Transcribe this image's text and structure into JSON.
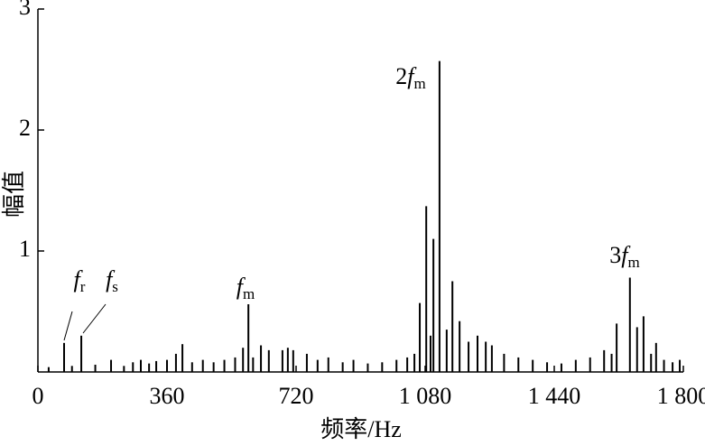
{
  "chart_data": {
    "type": "stem",
    "x_label": "频率/Hz",
    "y_label": "幅值",
    "xlim": [
      0,
      1800
    ],
    "ylim": [
      0,
      3
    ],
    "xticks": [
      0,
      360,
      720,
      {
        "value": 1080,
        "label": "1 080"
      },
      {
        "value": 1440,
        "label": "1 440"
      },
      {
        "value": 1800,
        "label": "1 800"
      }
    ],
    "yticks": [
      1,
      2,
      3
    ],
    "color": "#000000",
    "x": [
      30,
      73,
      95,
      121,
      160,
      204,
      240,
      265,
      287,
      310,
      330,
      360,
      385,
      403,
      430,
      460,
      490,
      520,
      550,
      572,
      587,
      600,
      622,
      644,
      682,
      697,
      712,
      750,
      780,
      810,
      850,
      880,
      920,
      960,
      1000,
      1030,
      1050,
      1065,
      1083,
      1095,
      1103,
      1120,
      1140,
      1156,
      1176,
      1201,
      1226,
      1249,
      1266,
      1300,
      1340,
      1380,
      1420,
      1460,
      1500,
      1540,
      1579,
      1600,
      1614,
      1651,
      1671,
      1689,
      1710,
      1724,
      1746,
      1770,
      1790
    ],
    "values": [
      0.04,
      0.24,
      0.05,
      0.3,
      0.06,
      0.1,
      0.05,
      0.08,
      0.1,
      0.07,
      0.09,
      0.1,
      0.15,
      0.23,
      0.08,
      0.1,
      0.08,
      0.1,
      0.12,
      0.2,
      0.56,
      0.12,
      0.22,
      0.18,
      0.18,
      0.2,
      0.18,
      0.15,
      0.1,
      0.12,
      0.08,
      0.1,
      0.07,
      0.08,
      0.1,
      0.12,
      0.15,
      0.57,
      1.37,
      0.3,
      1.1,
      2.57,
      0.35,
      0.75,
      0.42,
      0.25,
      0.3,
      0.25,
      0.22,
      0.15,
      0.12,
      0.1,
      0.08,
      0.07,
      0.1,
      0.12,
      0.18,
      0.15,
      0.4,
      0.78,
      0.37,
      0.46,
      0.15,
      0.24,
      0.1,
      0.08,
      0.1
    ],
    "annotations": [
      {
        "symbol": "f",
        "subscript": "r"
      },
      {
        "symbol": "f",
        "subscript": "s"
      },
      {
        "symbol": "f",
        "subscript": "m"
      },
      {
        "prefix": "2",
        "symbol": "f",
        "subscript": "m"
      },
      {
        "prefix": "3",
        "symbol": "f",
        "subscript": "m"
      }
    ]
  }
}
